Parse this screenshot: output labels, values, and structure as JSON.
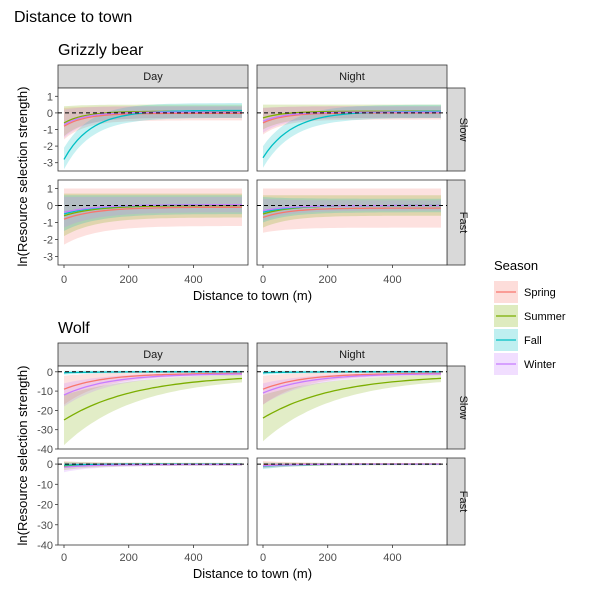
{
  "title": "Distance to town",
  "chart_data": [
    {
      "type": "line",
      "title": "Grizzly bear",
      "xlabel": "Distance to town (m)",
      "ylabel": "ln(Resource selection strength)",
      "xlim": [
        0,
        550
      ],
      "ylim": [
        -3.5,
        1.5
      ],
      "x_ticks": [
        0,
        200,
        400
      ],
      "y_ticks": [
        1,
        0,
        -1,
        -2,
        -3
      ],
      "reference_line": 0,
      "columns": [
        "Day",
        "Night"
      ],
      "rows": [
        "Slow",
        "Fast"
      ],
      "panels": [
        {
          "column": "Day",
          "row": "Slow",
          "series": [
            {
              "name": "Spring",
              "start": -0.8,
              "lo_start": -1.6,
              "hi_start": 0.3,
              "lo_end": -0.45,
              "hi_end": 0.4,
              "rate": 0.015
            },
            {
              "name": "Summer",
              "start": -0.6,
              "lo_start": -1.4,
              "hi_start": 0.4,
              "lo_end": -0.3,
              "hi_end": 0.5,
              "rate": 0.015
            },
            {
              "name": "Fall",
              "start": -2.8,
              "lo_start": -3.4,
              "hi_start": -2.1,
              "lo_end": -0.3,
              "hi_end": 0.6,
              "rate": 0.012
            },
            {
              "name": "Winter",
              "start": -0.7,
              "lo_start": -1.5,
              "hi_start": 0.2,
              "lo_end": -0.3,
              "hi_end": 0.4,
              "rate": 0.015
            }
          ]
        },
        {
          "column": "Night",
          "row": "Slow",
          "series": [
            {
              "name": "Spring",
              "start": -0.6,
              "lo_start": -1.3,
              "hi_start": 0.3,
              "lo_end": -0.4,
              "hi_end": 0.4,
              "rate": 0.015
            },
            {
              "name": "Summer",
              "start": -0.3,
              "lo_start": -1.0,
              "hi_start": 0.5,
              "lo_end": -0.3,
              "hi_end": 0.5,
              "rate": 0.015
            },
            {
              "name": "Fall",
              "start": -2.7,
              "lo_start": -3.3,
              "hi_start": -2.0,
              "lo_end": -0.3,
              "hi_end": 0.5,
              "rate": 0.011
            },
            {
              "name": "Winter",
              "start": -0.5,
              "lo_start": -1.2,
              "hi_start": 0.3,
              "lo_end": -0.3,
              "hi_end": 0.4,
              "rate": 0.015
            }
          ]
        },
        {
          "column": "Day",
          "row": "Fast",
          "series": [
            {
              "name": "Spring",
              "start": -0.8,
              "lo_start": -2.3,
              "hi_start": 1.0,
              "lo_end": -1.2,
              "hi_end": 1.0,
              "rate": 0.01
            },
            {
              "name": "Summer",
              "start": -0.6,
              "lo_start": -1.8,
              "hi_start": 0.7,
              "lo_end": -0.7,
              "hi_end": 0.7,
              "rate": 0.01
            },
            {
              "name": "Fall",
              "start": -0.5,
              "lo_start": -1.5,
              "hi_start": 0.6,
              "lo_end": -0.5,
              "hi_end": 0.6,
              "rate": 0.01
            },
            {
              "name": "Winter",
              "start": -0.4,
              "lo_start": -1.3,
              "hi_start": 0.5,
              "lo_end": -0.4,
              "hi_end": 0.5,
              "rate": 0.01
            }
          ]
        },
        {
          "column": "Night",
          "row": "Fast",
          "series": [
            {
              "name": "Spring",
              "start": -0.7,
              "lo_start": -1.6,
              "hi_start": 1.0,
              "lo_end": -1.3,
              "hi_end": 1.0,
              "rate": 0.012
            },
            {
              "name": "Summer",
              "start": -0.5,
              "lo_start": -1.3,
              "hi_start": 0.6,
              "lo_end": -0.6,
              "hi_end": 0.6,
              "rate": 0.012
            },
            {
              "name": "Fall",
              "start": -0.4,
              "lo_start": -1.0,
              "hi_start": 0.5,
              "lo_end": -0.4,
              "hi_end": 0.4,
              "rate": 0.012
            },
            {
              "name": "Winter",
              "start": -0.3,
              "lo_start": -0.9,
              "hi_start": 0.4,
              "lo_end": -0.3,
              "hi_end": 0.3,
              "rate": 0.012
            }
          ]
        }
      ]
    },
    {
      "type": "line",
      "title": "Wolf",
      "xlabel": "Distance to town (m)",
      "ylabel": "ln(Resource selection strength)",
      "xlim": [
        0,
        550
      ],
      "ylim": [
        -40,
        3
      ],
      "x_ticks": [
        0,
        200,
        400
      ],
      "y_ticks": [
        0,
        -10,
        -20,
        -30,
        -40
      ],
      "reference_line": 0,
      "columns": [
        "Day",
        "Night"
      ],
      "rows": [
        "Slow",
        "Fast"
      ],
      "panels": [
        {
          "column": "Day",
          "row": "Slow",
          "series": [
            {
              "name": "Spring",
              "start": -9,
              "lo_start": -17,
              "hi_start": -2,
              "lo_end": -1.5,
              "hi_end": 0,
              "rate": 0.008
            },
            {
              "name": "Summer",
              "start": -25,
              "lo_start": -38,
              "hi_start": -12,
              "lo_end": -2.5,
              "hi_end": -0.5,
              "rate": 0.0045
            },
            {
              "name": "Fall",
              "start": -0.5,
              "lo_start": -1.5,
              "hi_start": 0.5,
              "lo_end": -0.5,
              "hi_end": 0.5,
              "rate": 0.01
            },
            {
              "name": "Winter",
              "start": -12,
              "lo_start": -18,
              "hi_start": -6,
              "lo_end": -1.5,
              "hi_end": -0.3,
              "rate": 0.007
            }
          ]
        },
        {
          "column": "Night",
          "row": "Slow",
          "series": [
            {
              "name": "Spring",
              "start": -9,
              "lo_start": -17,
              "hi_start": -2,
              "lo_end": -1.5,
              "hi_end": 0,
              "rate": 0.008
            },
            {
              "name": "Summer",
              "start": -24,
              "lo_start": -36,
              "hi_start": -12,
              "lo_end": -2.5,
              "hi_end": -0.5,
              "rate": 0.0045
            },
            {
              "name": "Fall",
              "start": -0.5,
              "lo_start": -1.5,
              "hi_start": 0.5,
              "lo_end": -0.5,
              "hi_end": 0.5,
              "rate": 0.01
            },
            {
              "name": "Winter",
              "start": -11,
              "lo_start": -17,
              "hi_start": -6,
              "lo_end": -1.5,
              "hi_end": -0.3,
              "rate": 0.007
            }
          ]
        },
        {
          "column": "Day",
          "row": "Fast",
          "series": [
            {
              "name": "Spring",
              "start": -0.5,
              "lo_start": -2.0,
              "hi_start": 1.5,
              "lo_end": -0.5,
              "hi_end": 0.5,
              "rate": 0.01
            },
            {
              "name": "Summer",
              "start": -1.0,
              "lo_start": -3.0,
              "hi_start": 1.0,
              "lo_end": -0.8,
              "hi_end": 0.6,
              "rate": 0.01
            },
            {
              "name": "Fall",
              "start": -0.5,
              "lo_start": -1.5,
              "hi_start": 0.8,
              "lo_end": -0.4,
              "hi_end": 0.4,
              "rate": 0.01
            },
            {
              "name": "Winter",
              "start": -1.5,
              "lo_start": -4.0,
              "hi_start": 0.5,
              "lo_end": -0.8,
              "hi_end": 0.4,
              "rate": 0.01
            }
          ]
        },
        {
          "column": "Night",
          "row": "Fast",
          "series": [
            {
              "name": "Spring",
              "start": -0.5,
              "lo_start": -1.5,
              "hi_start": 1.5,
              "lo_end": -0.4,
              "hi_end": 0.5,
              "rate": 0.01
            },
            {
              "name": "Summer",
              "start": -0.8,
              "lo_start": -2.0,
              "hi_start": 0.8,
              "lo_end": -0.6,
              "hi_end": 0.5,
              "rate": 0.01
            },
            {
              "name": "Fall",
              "start": -1.0,
              "lo_start": -2.5,
              "hi_start": 0.5,
              "lo_end": -0.4,
              "hi_end": 0.4,
              "rate": 0.01
            },
            {
              "name": "Winter",
              "start": -0.8,
              "lo_start": -2.0,
              "hi_start": 0.5,
              "lo_end": -0.4,
              "hi_end": 0.4,
              "rate": 0.01
            }
          ]
        }
      ]
    }
  ],
  "legend": {
    "title": "Season",
    "placement": "right",
    "items": [
      {
        "name": "Spring",
        "color": "#F8766D"
      },
      {
        "name": "Summer",
        "color": "#7CAE00"
      },
      {
        "name": "Fall",
        "color": "#00BFC4"
      },
      {
        "name": "Winter",
        "color": "#C77CFF"
      }
    ]
  }
}
